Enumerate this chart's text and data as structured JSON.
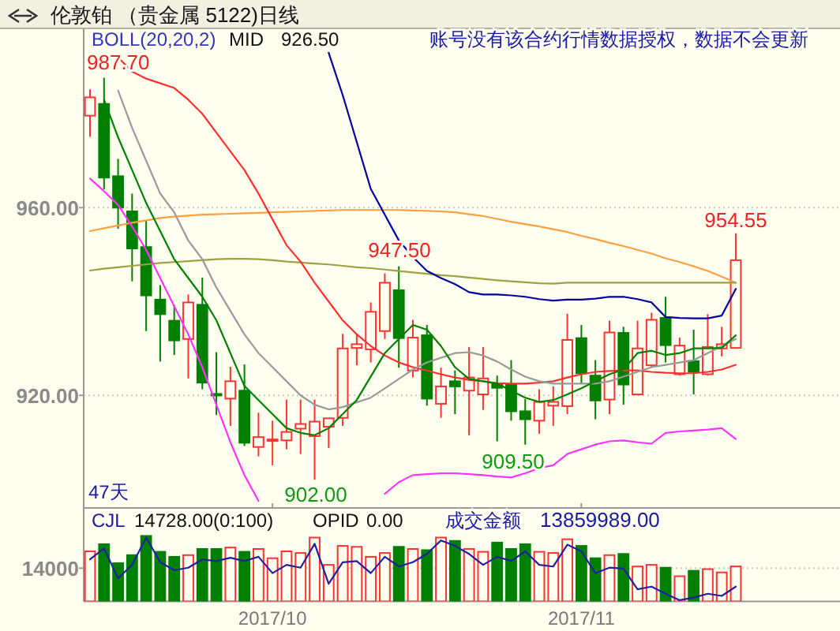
{
  "chart_data": [
    {
      "type": "candlestick",
      "title": "伦敦铂  （贵金属  5122)日线",
      "categories": [
        null,
        null,
        null,
        null,
        null,
        null,
        null,
        null,
        null,
        null,
        null,
        null,
        null,
        "2017/10",
        null,
        null,
        null,
        null,
        null,
        null,
        null,
        null,
        null,
        null,
        null,
        null,
        null,
        null,
        null,
        null,
        null,
        null,
        null,
        null,
        null,
        "2017/11",
        null,
        null,
        null,
        null,
        null,
        null,
        null,
        null,
        null,
        null,
        null
      ],
      "ohlc": [
        [
          979.6,
          985.2,
          975.1,
          983.5
        ],
        [
          982.1,
          987.7,
          963.9,
          966.4
        ],
        [
          966.7,
          970.4,
          955.5,
          960.0
        ],
        [
          959.2,
          963.0,
          944.3,
          951.3
        ],
        [
          951.6,
          957.2,
          933.7,
          941.3
        ],
        [
          940.4,
          943.5,
          927.2,
          937.3
        ],
        [
          935.9,
          939.3,
          928.6,
          931.7
        ],
        [
          932.0,
          941.5,
          923.6,
          939.8
        ],
        [
          939.3,
          945.1,
          921.3,
          922.7
        ],
        [
          920.3,
          929.2,
          915.8,
          920.0
        ],
        [
          919.3,
          926.1,
          913.5,
          923.0
        ],
        [
          921.0,
          926.6,
          909.2,
          909.9
        ],
        [
          909.0,
          916.3,
          907.0,
          911.1
        ],
        [
          910.3,
          914.6,
          905.1,
          910.6
        ],
        [
          910.4,
          919.1,
          908.5,
          912.2
        ],
        [
          912.9,
          919.1,
          907.5,
          913.9
        ],
        [
          911.3,
          919.1,
          902.0,
          914.4
        ],
        [
          913.3,
          915.2,
          908.8,
          915.1
        ],
        [
          915.2,
          933.1,
          913.5,
          930.0
        ],
        [
          930.1,
          933.1,
          926.4,
          930.9
        ],
        [
          929.8,
          939.8,
          927.0,
          937.8
        ],
        [
          933.7,
          946.0,
          932.0,
          944.0
        ],
        [
          942.4,
          947.5,
          925.9,
          932.2
        ],
        [
          925.3,
          936.1,
          923.8,
          932.3
        ],
        [
          932.8,
          935.0,
          917.8,
          919.3
        ],
        [
          918.2,
          925.9,
          915.2,
          921.9
        ],
        [
          923.0,
          925.3,
          916.0,
          921.9
        ],
        [
          921.0,
          930.3,
          911.5,
          923.8
        ],
        [
          920.2,
          930.3,
          916.9,
          923.6
        ],
        [
          922.5,
          924.2,
          910.2,
          921.6
        ],
        [
          922.3,
          927.5,
          914.6,
          916.6
        ],
        [
          916.6,
          919.2,
          909.5,
          914.9
        ],
        [
          914.6,
          921.3,
          911.8,
          918.6
        ],
        [
          917.8,
          921.9,
          913.5,
          918.6
        ],
        [
          917.7,
          937.4,
          916.0,
          931.8
        ],
        [
          932.2,
          935.0,
          922.5,
          924.7
        ],
        [
          924.2,
          927.5,
          914.9,
          918.9
        ],
        [
          919.1,
          935.9,
          916.0,
          933.4
        ],
        [
          933.3,
          934.6,
          918.0,
          922.3
        ],
        [
          920.2,
          935.9,
          920.0,
          930.0
        ],
        [
          926.4,
          937.6,
          925.9,
          936.1
        ],
        [
          936.5,
          941.0,
          927.0,
          930.7
        ],
        [
          924.5,
          932.3,
          924.2,
          930.6
        ],
        [
          927.3,
          934.0,
          920.2,
          925.0
        ],
        [
          924.5,
          937.3,
          924.2,
          930.3
        ],
        [
          930.0,
          934.6,
          928.3,
          930.9
        ],
        [
          930.1,
          954.55,
          930.1,
          948.8
        ]
      ],
      "colors": [
        "#ff3333",
        "#007f00",
        "#007f00",
        "#007f00",
        "#007f00",
        "#007f00",
        "#007f00",
        "#ff3333",
        "#007f00",
        "#007f00",
        "#ff3333",
        "#007f00",
        "#ff3333",
        "#ff3333",
        "#ff3333",
        "#ff3333",
        "#ff3333",
        "#ff3333",
        "#ff3333",
        "#ff3333",
        "#ff3333",
        "#ff3333",
        "#007f00",
        "#ff3333",
        "#007f00",
        "#ff3333",
        "#007f00",
        "#ff3333",
        "#ff3333",
        "#007f00",
        "#007f00",
        "#007f00",
        "#ff3333",
        "#ff3333",
        "#ff3333",
        "#007f00",
        "#007f00",
        "#ff3333",
        "#007f00",
        "#ff3333",
        "#ff3333",
        "#007f00",
        "#ff3333",
        "#007f00",
        "#ff3333",
        "#ff3333",
        "#ff3333"
      ],
      "series": [
        {
          "type": "line",
          "color": "#ffa040",
          "values": [
            955,
            955.6,
            956.2,
            956.8,
            957.3,
            957.8,
            958.1,
            958.3,
            958.5,
            958.6,
            958.7,
            958.8,
            958.9,
            959,
            959.1,
            959.2,
            959.3,
            959.4,
            959.5,
            959.5,
            959.5,
            959.5,
            959.5,
            959.4,
            959.3,
            959.2,
            959,
            958.6,
            958.2,
            957.6,
            957,
            956.5,
            956,
            955.4,
            954.8,
            954,
            953.3,
            952.5,
            951.8,
            951,
            950.2,
            949.2,
            948.4,
            947.5,
            946.5,
            945.3,
            944
          ]
        },
        {
          "type": "line",
          "color": "#a0a040",
          "values": [
            946.6,
            947,
            947.3,
            947.6,
            947.9,
            948.2,
            948.4,
            948.6,
            948.8,
            949,
            949.1,
            949.1,
            949,
            948.8,
            948.5,
            948.3,
            948.1,
            947.9,
            947.6,
            947.3,
            947.1,
            946.8,
            946.5,
            946.2,
            945.9,
            945.6,
            945.4,
            945.1,
            944.8,
            944.5,
            944.3,
            944.1,
            943.9,
            943.8,
            944,
            944,
            944,
            944,
            944,
            944,
            944,
            944,
            944,
            944,
            944,
            944,
            944
          ]
        },
        {
          "type": "line",
          "color": "#ff3030",
          "values": [
            null,
            null,
            992,
            989,
            987.5,
            986.5,
            985.5,
            983,
            980,
            976,
            972,
            968,
            963,
            957.5,
            952,
            948.5,
            944,
            940,
            936,
            933,
            930.5,
            928.5,
            927,
            926,
            925.3,
            924.5,
            923.8,
            923.3,
            923,
            922.6,
            922.5,
            922.5,
            922.7,
            923,
            923.8,
            924.5,
            925,
            925.2,
            925.3,
            925.3,
            925,
            924.8,
            924.7,
            924.7,
            925,
            925.5,
            926.5
          ]
        },
        {
          "type": "line",
          "color": "#0000a0",
          "values": [
            null,
            null,
            null,
            null,
            null,
            null,
            null,
            null,
            null,
            null,
            null,
            null,
            null,
            null,
            null,
            null,
            null,
            993,
            984,
            974,
            964,
            958.5,
            953,
            949.5,
            946.5,
            945,
            943.7,
            942,
            941.5,
            941.5,
            941.3,
            941,
            940.5,
            940.2,
            940.4,
            940.4,
            940.6,
            941,
            941,
            940.5,
            939.8,
            936.7,
            936.5,
            936.4,
            936.4,
            937,
            942.7
          ]
        },
        {
          "type": "line",
          "color": "#ff33ff",
          "values": [
            966.2,
            963.5,
            960.6,
            956,
            951,
            945,
            939,
            933,
            926,
            918,
            910,
            903,
            897.5,
            null,
            null,
            null,
            null,
            null,
            null,
            null,
            null,
            899,
            901.5,
            903,
            903.2,
            903.4,
            903.4,
            903.2,
            903,
            902.7,
            902.5,
            903.4,
            904.5,
            905.1,
            907.5,
            908.5,
            909.5,
            910.2,
            910.4,
            910,
            909.7,
            912,
            912.3,
            912.5,
            912.7,
            913,
            910.7
          ]
        },
        {
          "type": "line",
          "color": "#999999",
          "values": [
            null,
            null,
            985,
            977,
            970,
            963,
            959,
            953,
            949,
            943,
            938,
            933,
            929,
            926,
            923,
            920,
            918,
            917,
            917.5,
            918.5,
            919.5,
            921.5,
            923.5,
            925.5,
            927,
            928,
            929,
            929.2,
            928.5,
            927.2,
            925.5,
            924,
            923,
            922.5,
            922.5,
            922.5,
            922.5,
            923,
            924,
            925,
            926,
            926.5,
            927,
            927.5,
            929,
            930.5,
            932
          ]
        },
        {
          "type": "line",
          "color": "#008000",
          "values": [
            null,
            983,
            975,
            968,
            961,
            955,
            949,
            945,
            941,
            936,
            929,
            922,
            919,
            916,
            913,
            912,
            911.5,
            913,
            916,
            919,
            924,
            929,
            932,
            935,
            934,
            930.5,
            926,
            923.5,
            923,
            922.5,
            921,
            919.5,
            918.6,
            919,
            920.2,
            921.5,
            923,
            924.5,
            925.5,
            929,
            929.5,
            928.6,
            929,
            930,
            930,
            930.1,
            932.8
          ]
        }
      ],
      "ylim": [
        896,
        998.2
      ],
      "yticks": [
        {
          "value": 960,
          "label": "960.00"
        },
        {
          "value": 920,
          "label": "920.00"
        }
      ],
      "grid": "y",
      "tick_labels": "y",
      "annotations": [
        "BOLL(20,20,2)",
        "MID",
        "926.50",
        "账号没有该合约行情数据授权，数据不会更新",
        "47天",
        "987.70",
        "947.50",
        "954.55",
        "902.00",
        "909.50"
      ]
    },
    {
      "type": "bar",
      "categories": [
        null,
        null,
        null,
        null,
        null,
        null,
        null,
        null,
        null,
        null,
        null,
        null,
        null,
        "2017/10",
        null,
        null,
        null,
        null,
        null,
        null,
        null,
        null,
        null,
        null,
        null,
        null,
        null,
        null,
        null,
        null,
        null,
        null,
        null,
        null,
        null,
        "2017/11",
        null,
        null,
        null,
        null,
        null,
        null,
        null,
        null,
        null,
        null,
        null
      ],
      "series": [
        {
          "colors": [
            "#ff3333",
            "#007f00",
            "#007f00",
            "#007f00",
            "#007f00",
            "#007f00",
            "#007f00",
            "#ff3333",
            "#007f00",
            "#007f00",
            "#ff3333",
            "#007f00",
            "#ff3333",
            "#ff3333",
            "#ff3333",
            "#ff3333",
            "#ff3333",
            "#ff3333",
            "#ff3333",
            "#ff3333",
            "#ff3333",
            "#ff3333",
            "#007f00",
            "#ff3333",
            "#007f00",
            "#ff3333",
            "#007f00",
            "#ff3333",
            "#ff3333",
            "#007f00",
            "#007f00",
            "#007f00",
            "#ff3333",
            "#ff3333",
            "#ff3333",
            "#007f00",
            "#007f00",
            "#ff3333",
            "#007f00",
            "#ff3333",
            "#ff3333",
            "#007f00",
            "#ff3333",
            "#007f00",
            "#ff3333",
            "#ff3333",
            "#ff3333"
          ],
          "values": [
            21100,
            24100,
            16100,
            19500,
            27600,
            20900,
            18800,
            19500,
            22100,
            22100,
            22700,
            20900,
            22100,
            18200,
            21100,
            20400,
            26900,
            15400,
            23400,
            23000,
            18800,
            20400,
            23000,
            22100,
            21600,
            26900,
            25500,
            22100,
            20900,
            24800,
            22100,
            24100,
            20900,
            20400,
            26200,
            23400,
            18200,
            19500,
            20000,
            14700,
            15400,
            14200,
            10600,
            12900,
            13600,
            12200,
            14728
          ]
        },
        {
          "type": "line",
          "color": "#2020a0",
          "values": [
            17700,
            22300,
            9700,
            15400,
            26900,
            16500,
            13100,
            14200,
            17700,
            17000,
            18400,
            17000,
            18800,
            11900,
            15400,
            14200,
            24300,
            7400,
            16500,
            17000,
            11900,
            18800,
            14700,
            16500,
            20000,
            25700,
            23400,
            20000,
            15400,
            18800,
            17000,
            21100,
            15400,
            14700,
            23900,
            21100,
            11900,
            14200,
            13800,
            5100,
            6200,
            3200,
            500,
            1600,
            3200,
            2300,
            6200
          ]
        }
      ],
      "ylim": [
        0,
        39400
      ],
      "yticks": [
        14000
      ],
      "grid": "y",
      "annotations": [
        "CJL",
        "14728.00(0:100)",
        "OPID",
        "0.00",
        "成交金额",
        "13859989.00"
      ]
    }
  ]
}
